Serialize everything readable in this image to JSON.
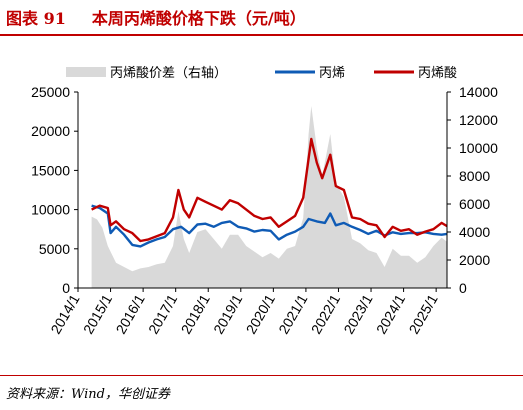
{
  "title": {
    "label": "图表 91",
    "text": "本周丙烯酸价格下跌（元/吨）"
  },
  "source": "资料来源：Wind，华创证券",
  "colors": {
    "spread": "#d9d9d9",
    "propylene": "#0f5bb5",
    "acrylic": "#c00000",
    "title": "#c00000"
  },
  "chart_data": {
    "type": "line",
    "title": "",
    "legend_position": "top",
    "grid": false,
    "x_tick_labels": [
      "2014/1",
      "2015/1",
      "2016/1",
      "2017/1",
      "2018/1",
      "2019/1",
      "2020/1",
      "2021/1",
      "2022/1",
      "2023/1",
      "2024/1",
      "2025/1"
    ],
    "xlim": [
      "2014-01",
      "2025-05"
    ],
    "ylim_left": [
      0,
      25000
    ],
    "yticks_left": [
      "0",
      "5000",
      "10000",
      "15000",
      "20000",
      "25000"
    ],
    "ylim_right": [
      0,
      14000
    ],
    "yticks_right": [
      "0",
      "2000",
      "4000",
      "6000",
      "8000",
      "10000",
      "12000",
      "14000"
    ],
    "series": [
      {
        "name": "丙烯酸价差（右轴）",
        "kind": "area",
        "axis": "right",
        "points": [
          [
            "2014-06",
            5100
          ],
          [
            "2014-08",
            4900
          ],
          [
            "2014-10",
            4300
          ],
          [
            "2014-12",
            3000
          ],
          [
            "2015-03",
            1800
          ],
          [
            "2015-06",
            1500
          ],
          [
            "2015-09",
            1200
          ],
          [
            "2015-12",
            1400
          ],
          [
            "2016-03",
            1500
          ],
          [
            "2016-06",
            1700
          ],
          [
            "2016-09",
            1800
          ],
          [
            "2016-12",
            3000
          ],
          [
            "2017-02",
            5500
          ],
          [
            "2017-04",
            3500
          ],
          [
            "2017-06",
            2500
          ],
          [
            "2017-09",
            4000
          ],
          [
            "2017-12",
            4200
          ],
          [
            "2018-03",
            3500
          ],
          [
            "2018-06",
            2800
          ],
          [
            "2018-09",
            3800
          ],
          [
            "2018-12",
            3800
          ],
          [
            "2019-03",
            3000
          ],
          [
            "2019-06",
            2600
          ],
          [
            "2019-09",
            2200
          ],
          [
            "2019-12",
            2500
          ],
          [
            "2020-03",
            2100
          ],
          [
            "2020-06",
            2800
          ],
          [
            "2020-09",
            3000
          ],
          [
            "2020-12",
            5000
          ],
          [
            "2021-02",
            11000
          ],
          [
            "2021-03",
            13000
          ],
          [
            "2021-05",
            10000
          ],
          [
            "2021-07",
            8000
          ],
          [
            "2021-10",
            11000
          ],
          [
            "2021-12",
            7500
          ],
          [
            "2022-03",
            6500
          ],
          [
            "2022-06",
            3500
          ],
          [
            "2022-09",
            3200
          ],
          [
            "2022-12",
            2700
          ],
          [
            "2023-03",
            2500
          ],
          [
            "2023-06",
            1500
          ],
          [
            "2023-09",
            2800
          ],
          [
            "2023-12",
            2300
          ],
          [
            "2024-03",
            2300
          ],
          [
            "2024-06",
            1800
          ],
          [
            "2024-09",
            2200
          ],
          [
            "2024-12",
            3000
          ],
          [
            "2025-03",
            3600
          ],
          [
            "2025-05",
            3300
          ]
        ]
      },
      {
        "name": "丙烯",
        "kind": "line",
        "axis": "left",
        "points": [
          [
            "2014-06",
            10500
          ],
          [
            "2014-09",
            10200
          ],
          [
            "2014-12",
            9500
          ],
          [
            "2015-01",
            7000
          ],
          [
            "2015-03",
            7800
          ],
          [
            "2015-06",
            6800
          ],
          [
            "2015-09",
            5500
          ],
          [
            "2015-12",
            5300
          ],
          [
            "2016-03",
            5800
          ],
          [
            "2016-06",
            6200
          ],
          [
            "2016-09",
            6500
          ],
          [
            "2016-12",
            7500
          ],
          [
            "2017-03",
            7800
          ],
          [
            "2017-06",
            7000
          ],
          [
            "2017-09",
            8100
          ],
          [
            "2017-12",
            8200
          ],
          [
            "2018-03",
            7800
          ],
          [
            "2018-06",
            8300
          ],
          [
            "2018-09",
            8500
          ],
          [
            "2018-12",
            7800
          ],
          [
            "2019-03",
            7600
          ],
          [
            "2019-06",
            7200
          ],
          [
            "2019-09",
            7400
          ],
          [
            "2019-12",
            7300
          ],
          [
            "2020-03",
            6200
          ],
          [
            "2020-06",
            6800
          ],
          [
            "2020-09",
            7200
          ],
          [
            "2020-12",
            7800
          ],
          [
            "2021-02",
            8800
          ],
          [
            "2021-05",
            8500
          ],
          [
            "2021-08",
            8300
          ],
          [
            "2021-10",
            9500
          ],
          [
            "2021-12",
            8000
          ],
          [
            "2022-03",
            8300
          ],
          [
            "2022-06",
            7800
          ],
          [
            "2022-09",
            7400
          ],
          [
            "2022-12",
            6900
          ],
          [
            "2023-03",
            7300
          ],
          [
            "2023-06",
            6700
          ],
          [
            "2023-09",
            7100
          ],
          [
            "2023-12",
            6900
          ],
          [
            "2024-03",
            7000
          ],
          [
            "2024-06",
            7000
          ],
          [
            "2024-09",
            7100
          ],
          [
            "2024-12",
            6900
          ],
          [
            "2025-03",
            6800
          ],
          [
            "2025-05",
            6900
          ]
        ]
      },
      {
        "name": "丙烯酸",
        "kind": "line",
        "axis": "left",
        "points": [
          [
            "2014-06",
            10000
          ],
          [
            "2014-09",
            10500
          ],
          [
            "2014-12",
            10200
          ],
          [
            "2015-01",
            8000
          ],
          [
            "2015-03",
            8500
          ],
          [
            "2015-06",
            7500
          ],
          [
            "2015-09",
            7000
          ],
          [
            "2015-12",
            6000
          ],
          [
            "2016-03",
            6200
          ],
          [
            "2016-06",
            6600
          ],
          [
            "2016-09",
            7000
          ],
          [
            "2016-12",
            9000
          ],
          [
            "2017-02",
            12500
          ],
          [
            "2017-04",
            10000
          ],
          [
            "2017-06",
            9000
          ],
          [
            "2017-09",
            11500
          ],
          [
            "2017-12",
            11000
          ],
          [
            "2018-03",
            10500
          ],
          [
            "2018-06",
            10000
          ],
          [
            "2018-09",
            11200
          ],
          [
            "2018-12",
            10800
          ],
          [
            "2019-03",
            10000
          ],
          [
            "2019-06",
            9200
          ],
          [
            "2019-09",
            8800
          ],
          [
            "2019-12",
            9000
          ],
          [
            "2020-03",
            7800
          ],
          [
            "2020-06",
            8500
          ],
          [
            "2020-09",
            9200
          ],
          [
            "2020-12",
            11500
          ],
          [
            "2021-02",
            16500
          ],
          [
            "2021-03",
            19000
          ],
          [
            "2021-05",
            16000
          ],
          [
            "2021-07",
            14000
          ],
          [
            "2021-10",
            17000
          ],
          [
            "2021-12",
            13000
          ],
          [
            "2022-03",
            12500
          ],
          [
            "2022-06",
            9000
          ],
          [
            "2022-09",
            8800
          ],
          [
            "2022-12",
            8200
          ],
          [
            "2023-03",
            8000
          ],
          [
            "2023-06",
            6500
          ],
          [
            "2023-09",
            7800
          ],
          [
            "2023-12",
            7300
          ],
          [
            "2024-03",
            7500
          ],
          [
            "2024-06",
            6800
          ],
          [
            "2024-09",
            7200
          ],
          [
            "2024-12",
            7500
          ],
          [
            "2025-03",
            8300
          ],
          [
            "2025-05",
            7900
          ]
        ]
      }
    ]
  }
}
